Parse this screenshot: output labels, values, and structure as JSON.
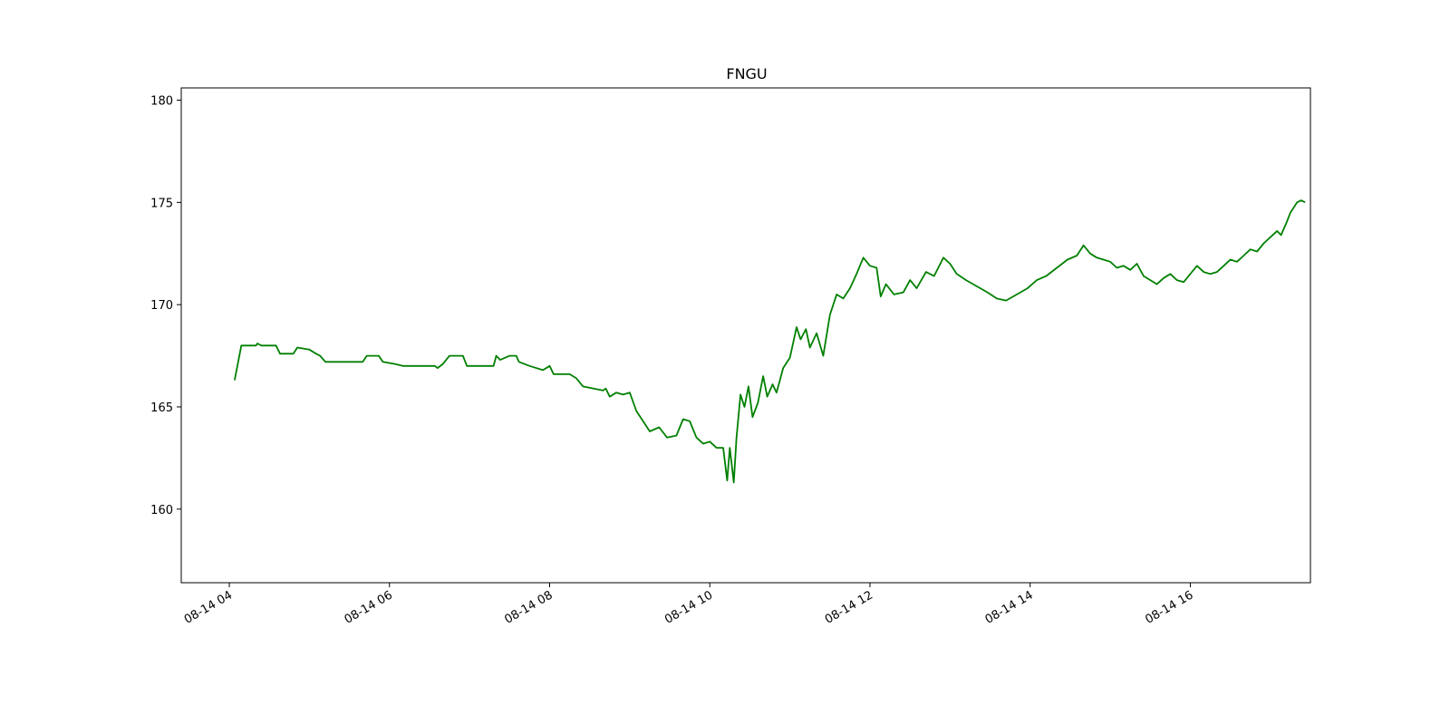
{
  "chart_data": {
    "type": "line",
    "title": "FNGU",
    "xlabel": "",
    "ylabel": "",
    "x_tick_labels": [
      "08-14 04",
      "08-14 06",
      "08-14 08",
      "08-14 10",
      "08-14 12",
      "08-14 14",
      "08-14 16"
    ],
    "y_tick_labels": [
      "160",
      "165",
      "170",
      "175",
      "180"
    ],
    "ylim": [
      156.4,
      180.6
    ],
    "xlim": [
      "08-14 03:24",
      "08-14 17:30"
    ],
    "grid": false,
    "legend": "none",
    "colors": {
      "line": "#008000",
      "axis": "#000000",
      "background": "#ffffff"
    },
    "series": [
      {
        "points": [
          [
            "08-14 04:04",
            166.3
          ],
          [
            "08-14 04:09",
            168.0
          ],
          [
            "08-14 04:20",
            168.0
          ],
          [
            "08-14 04:21",
            168.1
          ],
          [
            "08-14 04:24",
            168.0
          ],
          [
            "08-14 04:35",
            168.0
          ],
          [
            "08-14 04:38",
            167.6
          ],
          [
            "08-14 04:48",
            167.6
          ],
          [
            "08-14 04:51",
            167.9
          ],
          [
            "08-14 05:00",
            167.8
          ],
          [
            "08-14 05:05",
            167.6
          ],
          [
            "08-14 05:08",
            167.5
          ],
          [
            "08-14 05:12",
            167.2
          ],
          [
            "08-14 05:40",
            167.2
          ],
          [
            "08-14 05:43",
            167.5
          ],
          [
            "08-14 05:52",
            167.5
          ],
          [
            "08-14 05:55",
            167.2
          ],
          [
            "08-14 06:04",
            167.1
          ],
          [
            "08-14 06:10",
            167.0
          ],
          [
            "08-14 06:34",
            167.0
          ],
          [
            "08-14 06:36",
            166.9
          ],
          [
            "08-14 06:40",
            167.1
          ],
          [
            "08-14 06:45",
            167.5
          ],
          [
            "08-14 06:55",
            167.5
          ],
          [
            "08-14 06:58",
            167.0
          ],
          [
            "08-14 07:18",
            167.0
          ],
          [
            "08-14 07:20",
            167.5
          ],
          [
            "08-14 07:23",
            167.3
          ],
          [
            "08-14 07:30",
            167.5
          ],
          [
            "08-14 07:35",
            167.5
          ],
          [
            "08-14 07:37",
            167.2
          ],
          [
            "08-14 07:45",
            167.0
          ],
          [
            "08-14 07:55",
            166.8
          ],
          [
            "08-14 08:00",
            167.0
          ],
          [
            "08-14 08:03",
            166.6
          ],
          [
            "08-14 08:15",
            166.6
          ],
          [
            "08-14 08:20",
            166.4
          ],
          [
            "08-14 08:25",
            166.0
          ],
          [
            "08-14 08:40",
            165.8
          ],
          [
            "08-14 08:42",
            165.9
          ],
          [
            "08-14 08:45",
            165.5
          ],
          [
            "08-14 08:50",
            165.7
          ],
          [
            "08-14 08:55",
            165.6
          ],
          [
            "08-14 09:00",
            165.7
          ],
          [
            "08-14 09:05",
            164.8
          ],
          [
            "08-14 09:10",
            164.3
          ],
          [
            "08-14 09:15",
            163.8
          ],
          [
            "08-14 09:22",
            164.0
          ],
          [
            "08-14 09:28",
            163.5
          ],
          [
            "08-14 09:35",
            163.6
          ],
          [
            "08-14 09:40",
            164.4
          ],
          [
            "08-14 09:45",
            164.3
          ],
          [
            "08-14 09:50",
            163.5
          ],
          [
            "08-14 09:55",
            163.2
          ],
          [
            "08-14 10:00",
            163.3
          ],
          [
            "08-14 10:05",
            163.0
          ],
          [
            "08-14 10:10",
            163.0
          ],
          [
            "08-14 10:13",
            161.4
          ],
          [
            "08-14 10:15",
            163.0
          ],
          [
            "08-14 10:18",
            161.3
          ],
          [
            "08-14 10:20",
            163.5
          ],
          [
            "08-14 10:23",
            165.6
          ],
          [
            "08-14 10:26",
            165.0
          ],
          [
            "08-14 10:29",
            166.0
          ],
          [
            "08-14 10:32",
            164.5
          ],
          [
            "08-14 10:36",
            165.2
          ],
          [
            "08-14 10:40",
            166.5
          ],
          [
            "08-14 10:43",
            165.5
          ],
          [
            "08-14 10:47",
            166.1
          ],
          [
            "08-14 10:50",
            165.7
          ],
          [
            "08-14 10:55",
            166.9
          ],
          [
            "08-14 11:00",
            167.4
          ],
          [
            "08-14 11:05",
            168.9
          ],
          [
            "08-14 11:08",
            168.3
          ],
          [
            "08-14 11:12",
            168.8
          ],
          [
            "08-14 11:15",
            167.9
          ],
          [
            "08-14 11:20",
            168.6
          ],
          [
            "08-14 11:25",
            167.5
          ],
          [
            "08-14 11:30",
            169.5
          ],
          [
            "08-14 11:35",
            170.5
          ],
          [
            "08-14 11:40",
            170.3
          ],
          [
            "08-14 11:45",
            170.8
          ],
          [
            "08-14 11:50",
            171.5
          ],
          [
            "08-14 11:55",
            172.3
          ],
          [
            "08-14 12:00",
            171.9
          ],
          [
            "08-14 12:05",
            171.8
          ],
          [
            "08-14 12:08",
            170.4
          ],
          [
            "08-14 12:12",
            171.0
          ],
          [
            "08-14 12:18",
            170.5
          ],
          [
            "08-14 12:25",
            170.6
          ],
          [
            "08-14 12:30",
            171.2
          ],
          [
            "08-14 12:35",
            170.8
          ],
          [
            "08-14 12:42",
            171.6
          ],
          [
            "08-14 12:48",
            171.4
          ],
          [
            "08-14 12:55",
            172.3
          ],
          [
            "08-14 13:00",
            172.0
          ],
          [
            "08-14 13:05",
            171.5
          ],
          [
            "08-14 13:12",
            171.2
          ],
          [
            "08-14 13:20",
            170.9
          ],
          [
            "08-14 13:28",
            170.6
          ],
          [
            "08-14 13:35",
            170.3
          ],
          [
            "08-14 13:42",
            170.2
          ],
          [
            "08-14 13:50",
            170.5
          ],
          [
            "08-14 13:58",
            170.8
          ],
          [
            "08-14 14:05",
            171.2
          ],
          [
            "08-14 14:12",
            171.4
          ],
          [
            "08-14 14:20",
            171.8
          ],
          [
            "08-14 14:28",
            172.2
          ],
          [
            "08-14 14:35",
            172.4
          ],
          [
            "08-14 14:40",
            172.9
          ],
          [
            "08-14 14:45",
            172.5
          ],
          [
            "08-14 14:50",
            172.3
          ],
          [
            "08-14 14:55",
            172.2
          ],
          [
            "08-14 15:00",
            172.1
          ],
          [
            "08-14 15:05",
            171.8
          ],
          [
            "08-14 15:10",
            171.9
          ],
          [
            "08-14 15:15",
            171.7
          ],
          [
            "08-14 15:20",
            172.0
          ],
          [
            "08-14 15:25",
            171.4
          ],
          [
            "08-14 15:30",
            171.2
          ],
          [
            "08-14 15:35",
            171.0
          ],
          [
            "08-14 15:40",
            171.3
          ],
          [
            "08-14 15:45",
            171.5
          ],
          [
            "08-14 15:50",
            171.2
          ],
          [
            "08-14 15:55",
            171.1
          ],
          [
            "08-14 16:00",
            171.5
          ],
          [
            "08-14 16:05",
            171.9
          ],
          [
            "08-14 16:10",
            171.6
          ],
          [
            "08-14 16:15",
            171.5
          ],
          [
            "08-14 16:20",
            171.6
          ],
          [
            "08-14 16:25",
            171.9
          ],
          [
            "08-14 16:30",
            172.2
          ],
          [
            "08-14 16:35",
            172.1
          ],
          [
            "08-14 16:40",
            172.4
          ],
          [
            "08-14 16:45",
            172.7
          ],
          [
            "08-14 16:50",
            172.6
          ],
          [
            "08-14 16:55",
            173.0
          ],
          [
            "08-14 17:00",
            173.3
          ],
          [
            "08-14 17:05",
            173.6
          ],
          [
            "08-14 17:08",
            173.4
          ],
          [
            "08-14 17:12",
            174.0
          ],
          [
            "08-14 17:15",
            174.5
          ],
          [
            "08-14 17:18",
            174.8
          ],
          [
            "08-14 17:20",
            175.0
          ],
          [
            "08-14 17:23",
            175.1
          ],
          [
            "08-14 17:26",
            175.0
          ]
        ]
      }
    ]
  }
}
